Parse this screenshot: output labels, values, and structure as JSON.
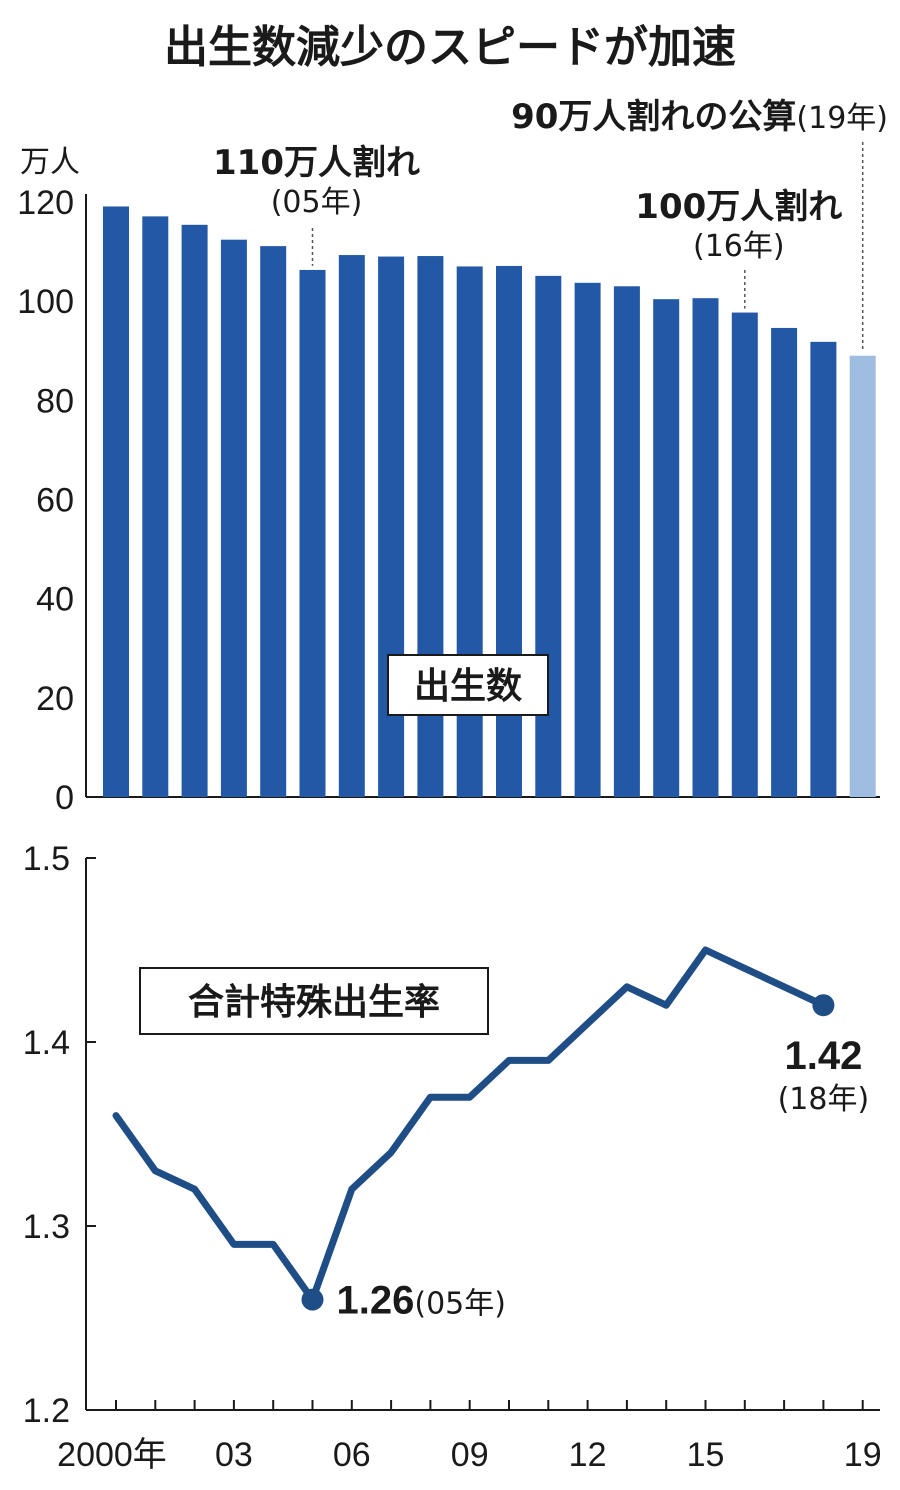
{
  "title": "出生数減少のスピードが加速",
  "chart_data": [
    {
      "type": "bar",
      "legend_label": "出生数",
      "unit": "万人",
      "ylim": [
        0,
        120
      ],
      "yticks": [
        0,
        20,
        40,
        60,
        80,
        100,
        120
      ],
      "x": [
        2000,
        2001,
        2002,
        2003,
        2004,
        2005,
        2006,
        2007,
        2008,
        2009,
        2010,
        2011,
        2012,
        2013,
        2014,
        2015,
        2016,
        2017,
        2018,
        2019
      ],
      "values": [
        119.1,
        117.1,
        115.4,
        112.4,
        111.1,
        106.3,
        109.3,
        109.0,
        109.1,
        107.0,
        107.1,
        105.1,
        103.7,
        103.0,
        100.4,
        100.6,
        97.7,
        94.6,
        91.8,
        89.0
      ],
      "colors": {
        "bar": "#2358a6",
        "estimate_bar": "#9fbde0"
      },
      "annotations": [
        {
          "text": "110万人割れ",
          "sub": "(05年)",
          "year": 2005
        },
        {
          "text": "100万人割れ",
          "sub": "(16年)",
          "year": 2016
        },
        {
          "text": "90万人割れの公算",
          "sub": "(19年)",
          "year": 2019
        }
      ]
    },
    {
      "type": "line",
      "legend_label": "合計特殊出生率",
      "ylim": [
        1.2,
        1.5
      ],
      "yticks": [
        "1.2",
        "1.3",
        "1.4",
        "1.5"
      ],
      "x": [
        2000,
        2001,
        2002,
        2003,
        2004,
        2005,
        2006,
        2007,
        2008,
        2009,
        2010,
        2011,
        2012,
        2013,
        2014,
        2015,
        2016,
        2017,
        2018
      ],
      "values": [
        1.36,
        1.33,
        1.32,
        1.29,
        1.29,
        1.26,
        1.32,
        1.34,
        1.37,
        1.37,
        1.39,
        1.39,
        1.41,
        1.43,
        1.42,
        1.45,
        1.44,
        1.43,
        1.42
      ],
      "color": "#1f4e87",
      "highlights": [
        {
          "year": 2005,
          "value_label": "1.26",
          "sub": "(05年)"
        },
        {
          "year": 2018,
          "value_label": "1.42",
          "sub": "(18年)"
        }
      ],
      "xticks": [
        {
          "year": 2000,
          "label": "2000年"
        },
        {
          "year": 2003,
          "label": "03"
        },
        {
          "year": 2006,
          "label": "06"
        },
        {
          "year": 2009,
          "label": "09"
        },
        {
          "year": 2012,
          "label": "12"
        },
        {
          "year": 2015,
          "label": "15"
        },
        {
          "year": 2019,
          "label": "19"
        }
      ]
    }
  ]
}
